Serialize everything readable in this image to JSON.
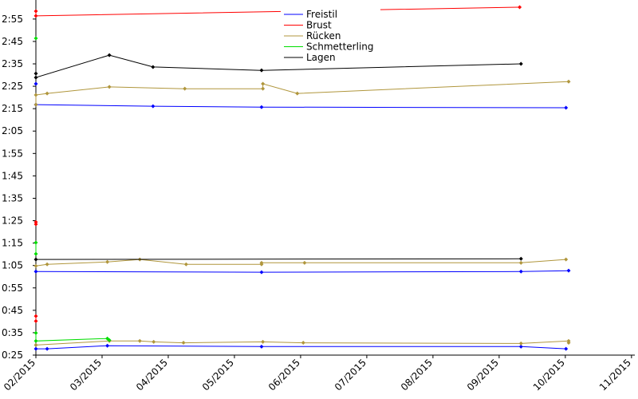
{
  "chart_data": {
    "type": "line",
    "xlim": [
      2,
      11.05
    ],
    "xticks": [
      {
        "value": 2,
        "label": "02/2015"
      },
      {
        "value": 3,
        "label": "03/2015"
      },
      {
        "value": 4,
        "label": "04/2015"
      },
      {
        "value": 5,
        "label": "05/2015"
      },
      {
        "value": 6,
        "label": "06/2015"
      },
      {
        "value": 7,
        "label": "07/2015"
      },
      {
        "value": 8,
        "label": "08/2015"
      },
      {
        "value": 9,
        "label": "09/2015"
      },
      {
        "value": 10,
        "label": "10/2015"
      },
      {
        "value": 11,
        "label": "11/2015"
      }
    ],
    "ylim": [
      25,
      183.5
    ],
    "yticks": [
      {
        "value": 25,
        "label": "0:25"
      },
      {
        "value": 35,
        "label": "0:35"
      },
      {
        "value": 45,
        "label": "0:45"
      },
      {
        "value": 55,
        "label": "0:55"
      },
      {
        "value": 65,
        "label": "1:05"
      },
      {
        "value": 75,
        "label": "1:15"
      },
      {
        "value": 85,
        "label": "1:25"
      },
      {
        "value": 95,
        "label": "1:35"
      },
      {
        "value": 105,
        "label": "1:45"
      },
      {
        "value": 115,
        "label": "1:55"
      },
      {
        "value": 125,
        "label": "2:05"
      },
      {
        "value": 135,
        "label": "2:15"
      },
      {
        "value": 145,
        "label": "2:25"
      },
      {
        "value": 155,
        "label": "2:35"
      },
      {
        "value": 165,
        "label": "2:45"
      },
      {
        "value": 175,
        "label": "2:55"
      }
    ],
    "legend": "top",
    "series": [
      {
        "name": "Freistil",
        "color": "#0000ff",
        "x": [
          2,
          null,
          2,
          3.77,
          5.41,
          10.01,
          null,
          2,
          5.41,
          9.33,
          10.05,
          null,
          2,
          2.17,
          3.08,
          5.41,
          9.33,
          10.01
        ],
        "values": [
          146.1,
          null,
          136.8,
          136.1,
          135.7,
          135.4,
          null,
          62.3,
          62.0,
          62.3,
          62.7,
          null,
          27.8,
          27.8,
          29.2,
          28.8,
          28.8,
          27.8
        ]
      },
      {
        "name": "Brust",
        "color": "#ff0000",
        "x": [
          2,
          2,
          9.31,
          null,
          2,
          2,
          null,
          2,
          2
        ],
        "values": [
          178.5,
          176.4,
          180.3,
          null,
          84.4,
          83.4,
          null,
          42.4,
          40.2
        ]
      },
      {
        "name": "Rücken",
        "color": "#b0963c",
        "x": [
          2,
          2,
          2.17,
          3.11,
          4.25,
          5.43,
          5.43,
          5.95,
          10.05,
          null,
          2,
          2.17,
          3.08,
          3.57,
          4.27,
          5.41,
          5.41,
          6.06,
          9.33,
          10.01,
          null,
          2,
          3.11,
          3.57,
          3.78,
          4.23,
          5.43,
          6.04,
          9.33,
          10.05,
          10.05
        ],
        "values": [
          136.8,
          141.1,
          141.8,
          144.7,
          143.9,
          143.9,
          146.1,
          141.8,
          147.1,
          null,
          64.8,
          65.5,
          66.6,
          67.7,
          65.5,
          65.5,
          66.2,
          66.2,
          66.2,
          67.7,
          null,
          29.5,
          31.3,
          31.3,
          30.9,
          30.5,
          30.9,
          30.5,
          30.2,
          31.3,
          30.5
        ]
      },
      {
        "name": "Schmetterling",
        "color": "#00dd00",
        "x": [
          2,
          null,
          2,
          2,
          null,
          2,
          2,
          3.08,
          3.11
        ],
        "values": [
          166.4,
          null,
          75.2,
          70.2,
          null,
          34.9,
          31.3,
          32.4,
          31.7
        ]
      },
      {
        "name": "Lagen",
        "color": "#000000",
        "x": [
          2,
          2,
          3.11,
          3.77,
          5.41,
          9.33,
          null,
          2,
          9.33
        ],
        "values": [
          150.7,
          148.9,
          158.9,
          153.6,
          152.1,
          155.0,
          null,
          67.7,
          68.0
        ]
      }
    ]
  }
}
